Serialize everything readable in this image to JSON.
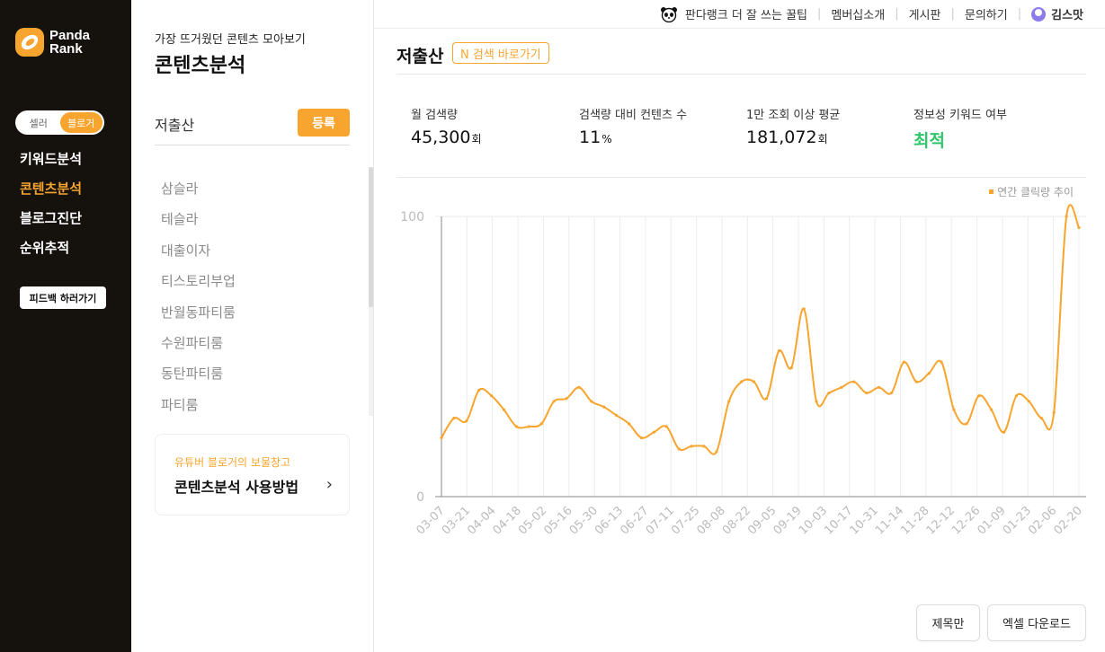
{
  "brand": {
    "name_line1": "Panda",
    "name_line2": "Rank",
    "accent": "#f7a52e"
  },
  "nav": {
    "toggle": [
      "셀러",
      "블로거"
    ],
    "items": [
      {
        "label": "키워드분석",
        "active": false
      },
      {
        "label": "콘텐츠분석",
        "active": true
      },
      {
        "label": "블로그진단",
        "active": false
      },
      {
        "label": "순위추적",
        "active": false
      }
    ],
    "feedback": "피드백 하러가기"
  },
  "header": {
    "tip": "판다랭크 더 잘 쓰는 꿀팁",
    "links": [
      "멤버십소개",
      "게시판",
      "문의하기"
    ],
    "user": "김스맛"
  },
  "panel": {
    "subtitle": "가장 뜨거웠던 콘텐츠 모아보기",
    "title": "콘텐츠분석",
    "search_value": "저출산",
    "register": "등록",
    "keywords": [
      "삼슬라",
      "테슬라",
      "대출이자",
      "티스토리부업",
      "반월동파티룸",
      "수원파티룸",
      "동탄파티룸",
      "파티룸"
    ],
    "guide_sub": "유튜버 블로거의 보물창고",
    "guide_title": "콘텐츠분석 사용방법"
  },
  "main": {
    "keyword": "저출산",
    "naver_link": "N 검색 바로가기",
    "stats": [
      {
        "label": "월 검색량",
        "value": "45,300",
        "unit": "회"
      },
      {
        "label": "검색량 대비 컨텐츠 수",
        "value": "11",
        "unit": "%"
      },
      {
        "label": "1만 조회 이상 평균",
        "value": "181,072",
        "unit": "회"
      },
      {
        "label": "정보성 키워드 여부",
        "value": "최적",
        "unit": ""
      }
    ],
    "buttons": {
      "title_only": "제목만",
      "excel": "엑셀 다운로드"
    }
  },
  "chart_data": {
    "type": "line",
    "legend": "연간 클릭량 추이",
    "legend_position": "top-right",
    "ylim": [
      0,
      100
    ],
    "y_ticks": [
      0,
      100
    ],
    "grid": true,
    "color": "#f7a52e",
    "x_tick_labels": [
      "03-07",
      "03-21",
      "04-04",
      "04-18",
      "05-02",
      "05-16",
      "05-30",
      "06-13",
      "06-27",
      "07-11",
      "07-25",
      "08-08",
      "08-22",
      "09-05",
      "09-19",
      "10-03",
      "10-17",
      "10-31",
      "11-14",
      "11-28",
      "12-12",
      "12-26",
      "01-09",
      "01-23",
      "02-06",
      "02-20"
    ],
    "values": [
      21,
      28,
      27,
      38,
      36,
      31,
      25,
      25,
      26,
      34,
      35,
      39,
      34,
      32,
      29,
      26,
      21,
      23,
      25,
      17,
      18,
      18,
      16,
      34,
      41,
      41,
      35,
      52,
      46,
      67,
      34,
      37,
      39,
      41,
      37,
      39,
      37,
      48,
      41,
      44,
      48,
      31,
      26,
      36,
      31,
      23,
      36,
      34,
      28,
      30,
      100,
      96
    ]
  }
}
